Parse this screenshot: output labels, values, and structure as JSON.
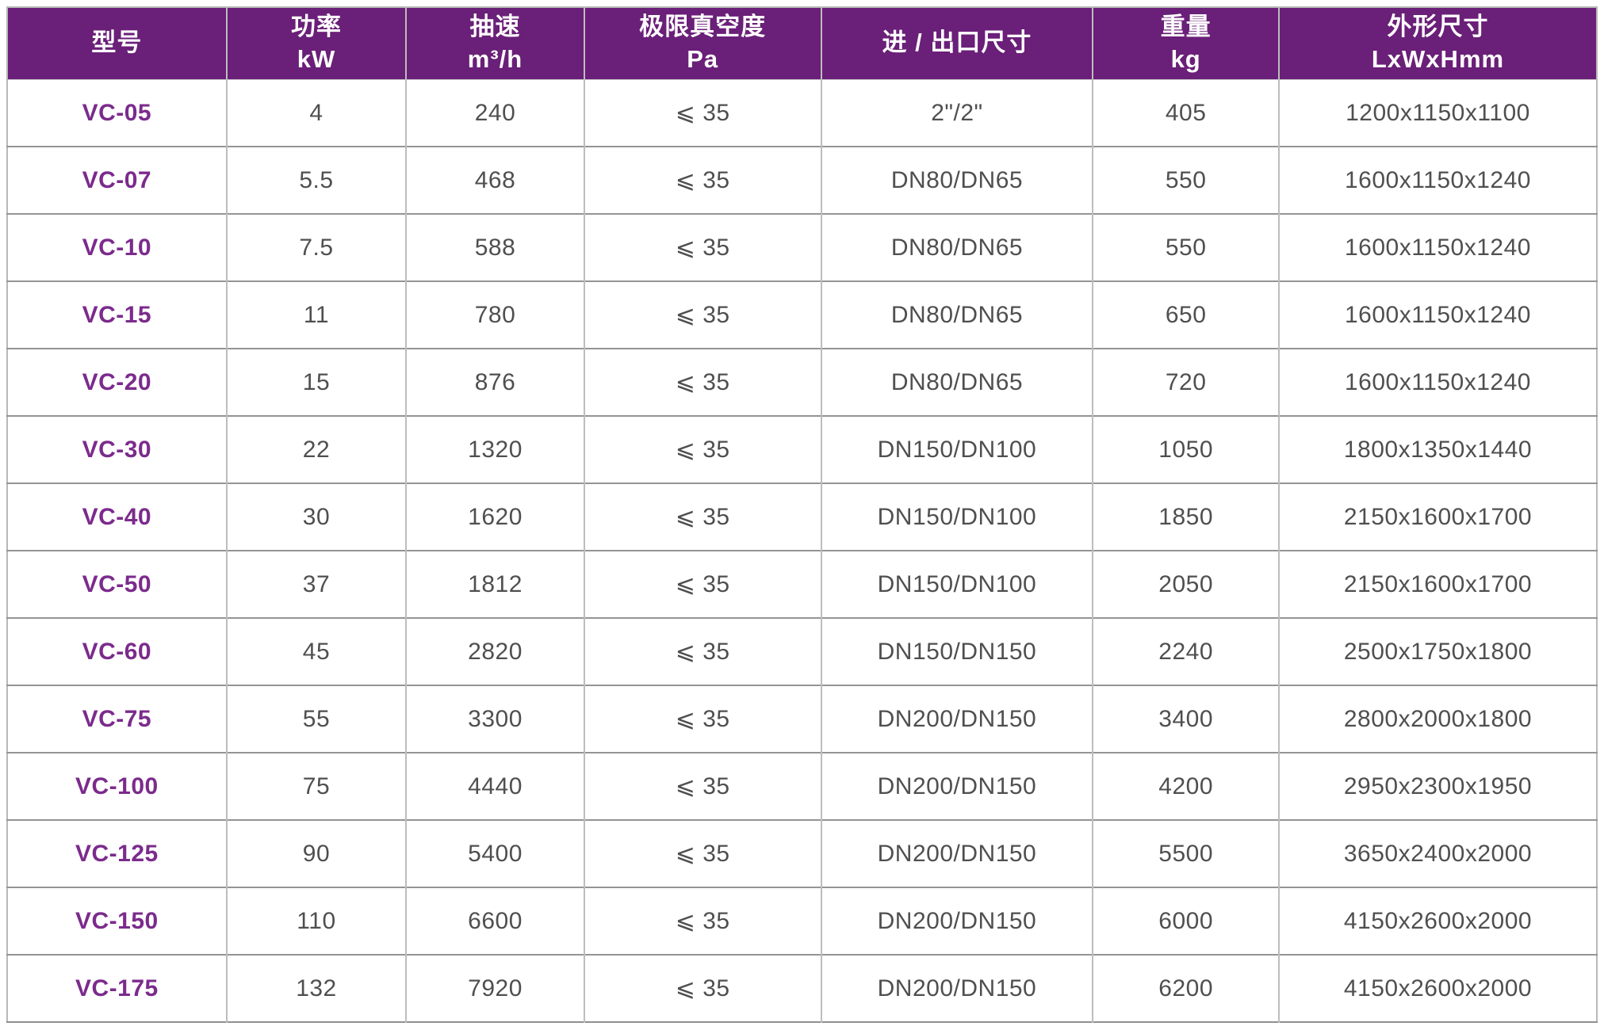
{
  "colors": {
    "header_background": "#6a1f78",
    "header_text": "#ffffff",
    "model_text": "#7b2b8c",
    "body_text": "#4f4f4f",
    "grid_vertical": "#bdbdbd",
    "grid_horizontal": "#949494"
  },
  "table": {
    "columns": [
      {
        "key": "model",
        "label": "型号"
      },
      {
        "key": "power",
        "label": "功率\nkW"
      },
      {
        "key": "speed",
        "label": "抽速\nm³/h"
      },
      {
        "key": "vacuum",
        "label": "极限真空度\nPa"
      },
      {
        "key": "port",
        "label": "进 / 出口尺寸"
      },
      {
        "key": "weight",
        "label": "重量\nkg"
      },
      {
        "key": "dims",
        "label": "外形尺寸\nLxWxHmm"
      }
    ],
    "rows": [
      [
        "VC-05",
        "4",
        "240",
        "⩽ 35",
        "2\"/2\"",
        "405",
        "1200x1150x1100"
      ],
      [
        "VC-07",
        "5.5",
        "468",
        "⩽ 35",
        "DN80/DN65",
        "550",
        "1600x1150x1240"
      ],
      [
        "VC-10",
        "7.5",
        "588",
        "⩽ 35",
        "DN80/DN65",
        "550",
        "1600x1150x1240"
      ],
      [
        "VC-15",
        "11",
        "780",
        "⩽ 35",
        "DN80/DN65",
        "650",
        "1600x1150x1240"
      ],
      [
        "VC-20",
        "15",
        "876",
        "⩽ 35",
        "DN80/DN65",
        "720",
        "1600x1150x1240"
      ],
      [
        "VC-30",
        "22",
        "1320",
        "⩽ 35",
        "DN150/DN100",
        "1050",
        "1800x1350x1440"
      ],
      [
        "VC-40",
        "30",
        "1620",
        "⩽ 35",
        "DN150/DN100",
        "1850",
        "2150x1600x1700"
      ],
      [
        "VC-50",
        "37",
        "1812",
        "⩽ 35",
        "DN150/DN100",
        "2050",
        "2150x1600x1700"
      ],
      [
        "VC-60",
        "45",
        "2820",
        "⩽ 35",
        "DN150/DN150",
        "2240",
        "2500x1750x1800"
      ],
      [
        "VC-75",
        "55",
        "3300",
        "⩽ 35",
        "DN200/DN150",
        "3400",
        "2800x2000x1800"
      ],
      [
        "VC-100",
        "75",
        "4440",
        "⩽ 35",
        "DN200/DN150",
        "4200",
        "2950x2300x1950"
      ],
      [
        "VC-125",
        "90",
        "5400",
        "⩽ 35",
        "DN200/DN150",
        "5500",
        "3650x2400x2000"
      ],
      [
        "VC-150",
        "110",
        "6600",
        "⩽ 35",
        "DN200/DN150",
        "6000",
        "4150x2600x2000"
      ],
      [
        "VC-175",
        "132",
        "7920",
        "⩽ 35",
        "DN200/DN150",
        "6200",
        "4150x2600x2000"
      ]
    ]
  }
}
